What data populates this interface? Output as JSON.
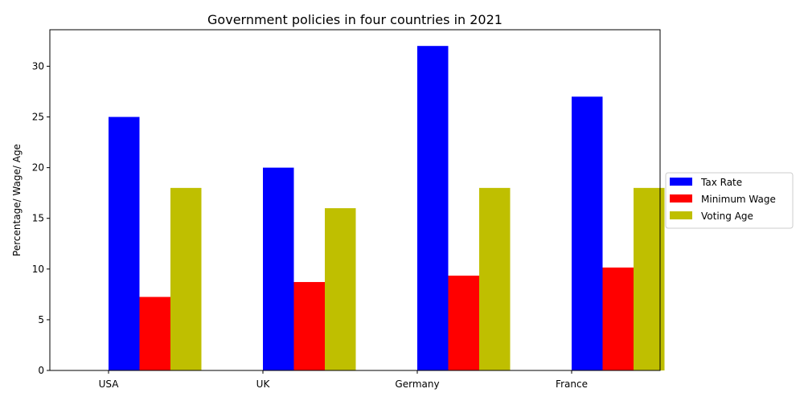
{
  "chart_data": {
    "type": "bar",
    "title": "Government policies in four countries in 2021",
    "xlabel": "",
    "ylabel": "Percentage/ Wage/ Age",
    "categories": [
      "USA",
      "UK",
      "Germany",
      "France"
    ],
    "series": [
      {
        "name": "Tax Rate",
        "color": "#0000ff",
        "values": [
          25,
          20,
          32,
          27
        ]
      },
      {
        "name": "Minimum Wage",
        "color": "#ff0000",
        "values": [
          7.25,
          8.72,
          9.35,
          10.15
        ]
      },
      {
        "name": "Voting Age",
        "color": "#bfbf00",
        "values": [
          18,
          16,
          18,
          18
        ]
      }
    ],
    "ylim": [
      0,
      33.6
    ],
    "yticks": [
      0,
      5,
      10,
      15,
      20,
      25,
      30
    ],
    "grid": false,
    "legend_position": "right"
  }
}
